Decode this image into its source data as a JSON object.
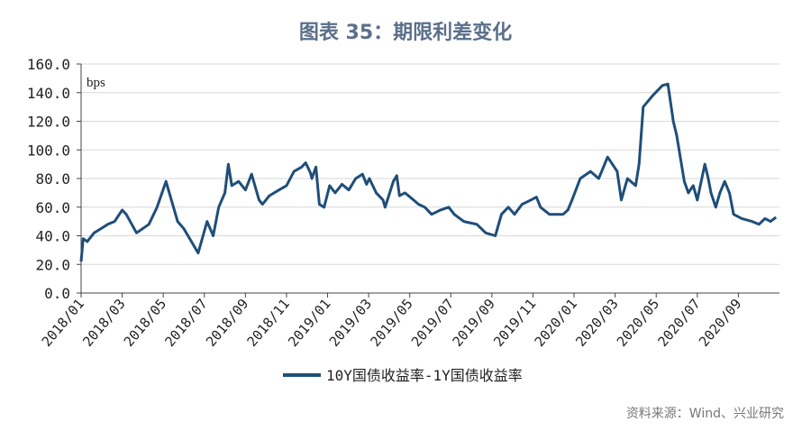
{
  "title": "图表 35：期限利差变化",
  "source": "资料来源：Wind、兴业研究",
  "chart_data": {
    "type": "line",
    "title": "图表 35：期限利差变化",
    "xlabel": "",
    "ylabel": "bps",
    "ylim": [
      0,
      160
    ],
    "yticks": [
      "0.0",
      "20.0",
      "40.0",
      "60.0",
      "80.0",
      "100.0",
      "120.0",
      "140.0",
      "160.0"
    ],
    "xticks": [
      "2018/01",
      "2018/03",
      "2018/05",
      "2018/07",
      "2018/09",
      "2018/11",
      "2019/01",
      "2019/03",
      "2019/05",
      "2019/07",
      "2019/09",
      "2019/11",
      "2020/01",
      "2020/03",
      "2020/05",
      "2020/07",
      "2020/09"
    ],
    "xrange": [
      "2018-01-01",
      "2020-11-01"
    ],
    "grid": true,
    "legend_position": "bottom",
    "color": "#1f4e79",
    "series": [
      {
        "name": "10Y国债收益率-1Y国债收益率",
        "points": [
          [
            "2018-01-01",
            22
          ],
          [
            "2018-01-04",
            38
          ],
          [
            "2018-01-10",
            36
          ],
          [
            "2018-01-20",
            42
          ],
          [
            "2018-01-30",
            45
          ],
          [
            "2018-02-10",
            48
          ],
          [
            "2018-02-20",
            50
          ],
          [
            "2018-03-01",
            58
          ],
          [
            "2018-03-07",
            55
          ],
          [
            "2018-03-22",
            42
          ],
          [
            "2018-04-10",
            48
          ],
          [
            "2018-04-22",
            60
          ],
          [
            "2018-05-05",
            78
          ],
          [
            "2018-05-22",
            50
          ],
          [
            "2018-06-01",
            45
          ],
          [
            "2018-06-22",
            28
          ],
          [
            "2018-07-05",
            50
          ],
          [
            "2018-07-14",
            40
          ],
          [
            "2018-07-22",
            60
          ],
          [
            "2018-08-01",
            70
          ],
          [
            "2018-08-06",
            90
          ],
          [
            "2018-08-11",
            75
          ],
          [
            "2018-08-21",
            78
          ],
          [
            "2018-09-01",
            72
          ],
          [
            "2018-09-10",
            83
          ],
          [
            "2018-09-21",
            65
          ],
          [
            "2018-09-26",
            62
          ],
          [
            "2018-10-06",
            68
          ],
          [
            "2018-10-20",
            72
          ],
          [
            "2018-11-01",
            75
          ],
          [
            "2018-11-12",
            85
          ],
          [
            "2018-11-23",
            88
          ],
          [
            "2018-11-29",
            91
          ],
          [
            "2018-12-06",
            84
          ],
          [
            "2018-12-08",
            80
          ],
          [
            "2018-12-14",
            88
          ],
          [
            "2018-12-19",
            62
          ],
          [
            "2018-12-26",
            60
          ],
          [
            "2019-01-04",
            75
          ],
          [
            "2019-01-12",
            70
          ],
          [
            "2019-01-22",
            76
          ],
          [
            "2019-02-02",
            72
          ],
          [
            "2019-02-12",
            80
          ],
          [
            "2019-02-22",
            83
          ],
          [
            "2019-02-28",
            76
          ],
          [
            "2019-03-02",
            80
          ],
          [
            "2019-03-12",
            70
          ],
          [
            "2019-03-22",
            65
          ],
          [
            "2019-03-25",
            60
          ],
          [
            "2019-04-07",
            78
          ],
          [
            "2019-04-12",
            82
          ],
          [
            "2019-04-16",
            68
          ],
          [
            "2019-04-24",
            70
          ],
          [
            "2019-05-04",
            66
          ],
          [
            "2019-05-14",
            62
          ],
          [
            "2019-05-23",
            60
          ],
          [
            "2019-06-03",
            55
          ],
          [
            "2019-06-16",
            58
          ],
          [
            "2019-06-28",
            60
          ],
          [
            "2019-07-06",
            55
          ],
          [
            "2019-07-20",
            50
          ],
          [
            "2019-08-09",
            48
          ],
          [
            "2019-08-22",
            42
          ],
          [
            "2019-09-06",
            40
          ],
          [
            "2019-09-15",
            55
          ],
          [
            "2019-09-25",
            60
          ],
          [
            "2019-10-04",
            55
          ],
          [
            "2019-10-15",
            62
          ],
          [
            "2019-10-28",
            65
          ],
          [
            "2019-11-06",
            67
          ],
          [
            "2019-11-12",
            60
          ],
          [
            "2019-11-25",
            55
          ],
          [
            "2019-12-15",
            55
          ],
          [
            "2019-12-22",
            58
          ],
          [
            "2019-12-28",
            65
          ],
          [
            "2020-01-10",
            80
          ],
          [
            "2020-01-25",
            85
          ],
          [
            "2020-02-07",
            80
          ],
          [
            "2020-02-20",
            95
          ],
          [
            "2020-03-04",
            85
          ],
          [
            "2020-03-10",
            65
          ],
          [
            "2020-03-19",
            80
          ],
          [
            "2020-04-01",
            75
          ],
          [
            "2020-04-06",
            90
          ],
          [
            "2020-04-12",
            130
          ],
          [
            "2020-04-26",
            138
          ],
          [
            "2020-05-10",
            145
          ],
          [
            "2020-05-18",
            146
          ],
          [
            "2020-05-26",
            120
          ],
          [
            "2020-06-01",
            110
          ],
          [
            "2020-06-12",
            78
          ],
          [
            "2020-06-18",
            70
          ],
          [
            "2020-06-25",
            75
          ],
          [
            "2020-07-01",
            65
          ],
          [
            "2020-07-12",
            90
          ],
          [
            "2020-07-17",
            80
          ],
          [
            "2020-07-21",
            70
          ],
          [
            "2020-07-28",
            60
          ],
          [
            "2020-08-04",
            70
          ],
          [
            "2020-08-11",
            78
          ],
          [
            "2020-08-18",
            70
          ],
          [
            "2020-08-24",
            55
          ],
          [
            "2020-09-06",
            52
          ],
          [
            "2020-09-21",
            50
          ],
          [
            "2020-10-01",
            48
          ],
          [
            "2020-10-10",
            52
          ],
          [
            "2020-10-18",
            50
          ],
          [
            "2020-10-26",
            53
          ]
        ]
      }
    ]
  }
}
